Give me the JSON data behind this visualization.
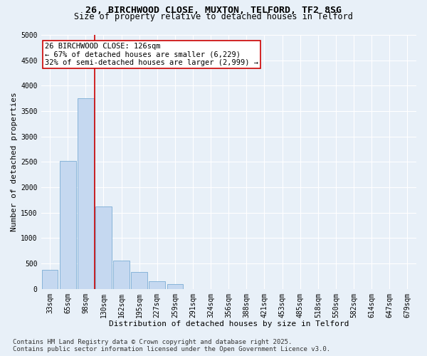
{
  "title_line1": "26, BIRCHWOOD CLOSE, MUXTON, TELFORD, TF2 8SG",
  "title_line2": "Size of property relative to detached houses in Telford",
  "xlabel": "Distribution of detached houses by size in Telford",
  "ylabel": "Number of detached properties",
  "categories": [
    "33sqm",
    "65sqm",
    "98sqm",
    "130sqm",
    "162sqm",
    "195sqm",
    "227sqm",
    "259sqm",
    "291sqm",
    "324sqm",
    "356sqm",
    "388sqm",
    "421sqm",
    "453sqm",
    "485sqm",
    "518sqm",
    "550sqm",
    "582sqm",
    "614sqm",
    "647sqm",
    "679sqm"
  ],
  "values": [
    380,
    2520,
    3750,
    1620,
    560,
    330,
    150,
    100,
    0,
    0,
    0,
    0,
    0,
    0,
    0,
    0,
    0,
    0,
    0,
    0,
    0
  ],
  "bar_color": "#c5d8f0",
  "bar_edge_color": "#7badd4",
  "vline_x": 2.5,
  "vline_color": "#cc0000",
  "annotation_text": "26 BIRCHWOOD CLOSE: 126sqm\n← 67% of detached houses are smaller (6,229)\n32% of semi-detached houses are larger (2,999) →",
  "annotation_box_color": "#ffffff",
  "annotation_box_edge": "#cc0000",
  "ylim": [
    0,
    5000
  ],
  "yticks": [
    0,
    500,
    1000,
    1500,
    2000,
    2500,
    3000,
    3500,
    4000,
    4500,
    5000
  ],
  "bg_color": "#e8f0f8",
  "plot_bg_color": "#e8f0f8",
  "footer_text": "Contains HM Land Registry data © Crown copyright and database right 2025.\nContains public sector information licensed under the Open Government Licence v3.0.",
  "title_fontsize": 9.5,
  "subtitle_fontsize": 8.5,
  "tick_fontsize": 7,
  "label_fontsize": 8,
  "annotation_fontsize": 7.5,
  "footer_fontsize": 6.5
}
